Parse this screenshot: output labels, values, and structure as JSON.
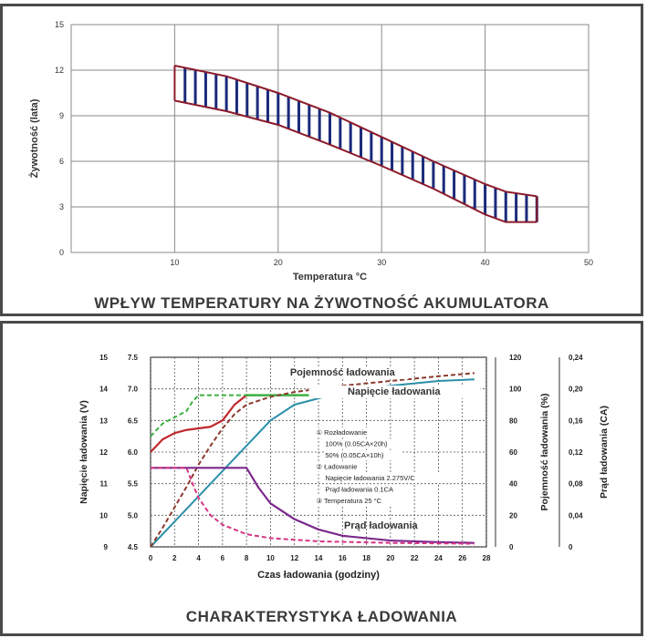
{
  "colors": {
    "grid": "#8a8a8a",
    "band_edge": "#8b1a2b",
    "band_fill": "#1a2a7a",
    "voltage": "#c0282d",
    "capacity": "#8b3a2e",
    "charge_volt_setting": "#3cb043",
    "charge_voltage_dashed": "#3cb043",
    "current_solid": "#7b2a8c",
    "current_dashed": "#d63384",
    "blue_line": "#2b8fa8"
  },
  "captions": {
    "top": "WPŁYW TEMPERATURY NA ŻYWOTNOŚĆ AKUMULATORA",
    "bottom": "CHARAKTERYSTYKA ŁADOWANIA"
  },
  "chart_data": [
    {
      "type": "area",
      "title": "",
      "xlabel": "Temperatura °C",
      "ylabel": "Żywotność (lata)",
      "xlim": [
        0,
        50
      ],
      "ylim": [
        0,
        15
      ],
      "xticks": [
        10,
        20,
        30,
        40,
        50
      ],
      "yticks": [
        0,
        3,
        6,
        9,
        12,
        15
      ],
      "grid": true,
      "series": [
        {
          "x": [
            10,
            15,
            20,
            25,
            30,
            35,
            40,
            42,
            45
          ],
          "upper": [
            12.3,
            11.6,
            10.5,
            9.2,
            7.6,
            6.0,
            4.5,
            4.0,
            3.7
          ],
          "lower": [
            10.0,
            9.3,
            8.4,
            7.1,
            5.7,
            4.2,
            2.5,
            2.0,
            2.0
          ]
        }
      ]
    },
    {
      "type": "line",
      "title": "",
      "xlabel": "Czas ładowania (godziny)",
      "xlim": [
        0,
        28
      ],
      "xticks": [
        0,
        2,
        4,
        6,
        8,
        10,
        12,
        14,
        16,
        18,
        20,
        22,
        24,
        26,
        28
      ],
      "grid": true,
      "left_axes": [
        {
          "label": "Napięcie ładowania (V)",
          "ticks": [
            "9",
            "10",
            "11",
            "12",
            "13",
            "14",
            "15"
          ]
        },
        {
          "ticks": [
            "4.5",
            "5.0",
            "5.5",
            "6.0",
            "6.5",
            "7.0",
            "7.5"
          ]
        }
      ],
      "right_axes": [
        {
          "label": "Pojemność ładowania (%)",
          "ticks": [
            "0",
            "20",
            "40",
            "60",
            "80",
            "100",
            "120"
          ]
        },
        {
          "label": "Prąd ładowania (CA)",
          "ticks": [
            "0",
            "0,04",
            "0,08",
            "0,12",
            "0,16",
            "0,20",
            "0,24"
          ]
        }
      ],
      "labels": {
        "capacity": "Pojemność ładowania",
        "voltage": "Napięcie ładowania",
        "current": "Prąd ładowania"
      },
      "notes": [
        "① Rozładowanie",
        "100%  (0.05CA×20h)",
        "50%  (0.05CA×10h)",
        "② Ładowanie",
        "Napięcie ładowania 2.275V/C",
        "Prąd ładowania 0.1CA",
        "③ Temperatura 25 °C"
      ],
      "series": [
        {
          "name": "Napięcie ładowania",
          "unit": "V",
          "style": "solid-green",
          "x": [
            8,
            27
          ],
          "y": [
            13.8,
            13.8
          ]
        },
        {
          "name": "Napięcie ładowania",
          "unit": "V",
          "style": "solid-red",
          "x": [
            0,
            1,
            2,
            3,
            4,
            5,
            6,
            7,
            8
          ],
          "y": [
            12.0,
            12.4,
            12.6,
            12.7,
            12.75,
            12.8,
            13.0,
            13.5,
            13.8
          ]
        },
        {
          "name": "Napięcie ładowania",
          "unit": "V",
          "style": "dashed-green",
          "x": [
            0,
            1,
            2,
            3,
            3.5,
            4,
            8
          ],
          "y": [
            12.5,
            12.9,
            13.1,
            13.3,
            13.6,
            13.8,
            13.8
          ]
        },
        {
          "name": "Pojemność ładowania",
          "unit": "%",
          "style": "solid-blue",
          "x": [
            0,
            2,
            4,
            6,
            8,
            10,
            12,
            16,
            20,
            24,
            27
          ],
          "y": [
            0,
            16,
            32,
            48,
            64,
            80,
            90,
            98,
            102,
            105,
            106
          ]
        },
        {
          "name": "Pojemność ładowania",
          "unit": "%",
          "style": "dashed-brown",
          "x": [
            0,
            1,
            2,
            3,
            4,
            5,
            6,
            7,
            8,
            10,
            12,
            16,
            20,
            24,
            27
          ],
          "y": [
            0,
            12,
            25,
            38,
            52,
            64,
            75,
            84,
            90,
            95,
            98,
            102,
            105,
            108,
            110
          ]
        },
        {
          "name": "Prąd ładowania",
          "unit": "CA",
          "style": "solid-purple",
          "x": [
            0,
            8,
            9,
            10,
            12,
            14,
            16,
            20,
            24,
            27
          ],
          "y": [
            0.1,
            0.1,
            0.075,
            0.055,
            0.035,
            0.022,
            0.014,
            0.008,
            0.006,
            0.005
          ]
        },
        {
          "name": "Prąd ładowania",
          "unit": "CA",
          "style": "dashed-pink",
          "x": [
            0,
            3,
            3.5,
            4,
            5,
            6,
            8,
            10,
            14,
            20,
            27
          ],
          "y": [
            0.1,
            0.1,
            0.08,
            0.062,
            0.04,
            0.028,
            0.016,
            0.011,
            0.007,
            0.005,
            0.004
          ]
        }
      ]
    }
  ]
}
